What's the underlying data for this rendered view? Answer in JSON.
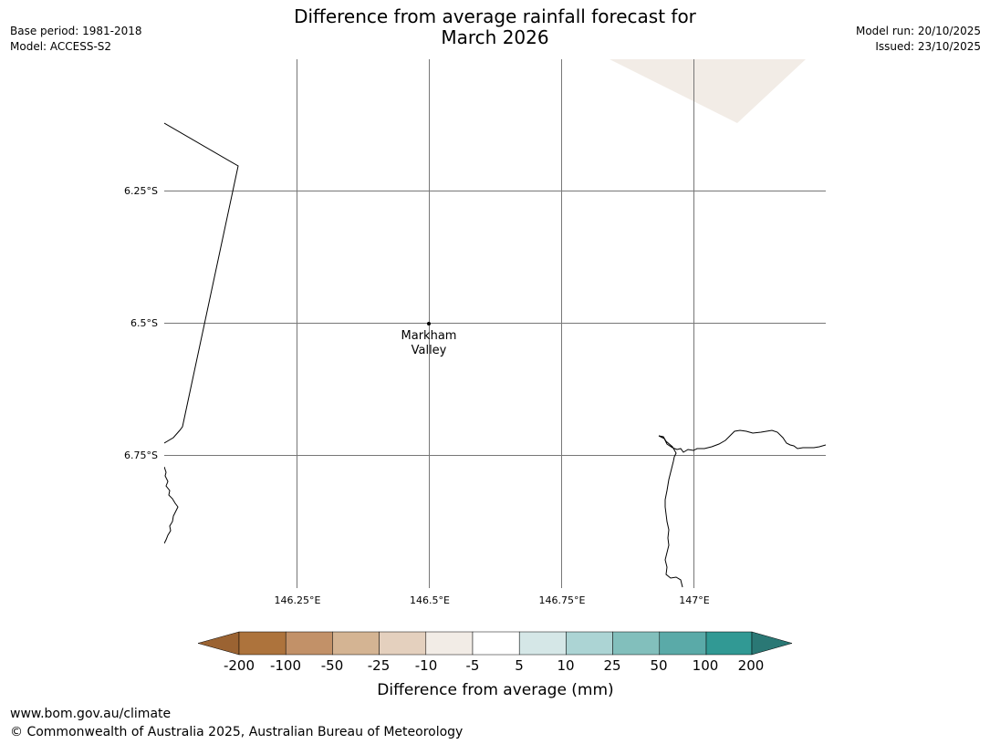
{
  "header": {
    "title_line1": "Difference from average rainfall forecast for",
    "title_line2": "March 2026",
    "base_period": "Base period: 1981-2018",
    "model": "Model: ACCESS-S2",
    "model_run": "Model run: 20/10/2025",
    "issued": "Issued: 23/10/2025"
  },
  "map": {
    "lat_labels": [
      "6.25°S",
      "6.5°S",
      "6.75°S"
    ],
    "lon_labels": [
      "146.25°E",
      "146.5°E",
      "146.75°E",
      "147°E"
    ],
    "place": {
      "name_line1": "Markham",
      "name_line2": "Valley"
    },
    "shading_colors": {
      "-10_to_-5": "#f2ece6"
    }
  },
  "colorbar": {
    "tick_labels": [
      "-200",
      "-100",
      "-50",
      "-25",
      "-10",
      "-5",
      "5",
      "10",
      "25",
      "50",
      "100",
      "200"
    ],
    "colors": [
      "#9b6332",
      "#ad733c",
      "#c29168",
      "#d4b493",
      "#e4d0be",
      "#f2ece6",
      "#ffffff",
      "#d5e7e7",
      "#acd4d4",
      "#82bfbc",
      "#5aaaa8",
      "#319994",
      "#2a7875"
    ],
    "label": "Difference from average (mm)"
  },
  "footer": {
    "url": "www.bom.gov.au/climate",
    "copyright": "© Commonwealth of Australia 2025, Australian Bureau of Meteorology"
  }
}
